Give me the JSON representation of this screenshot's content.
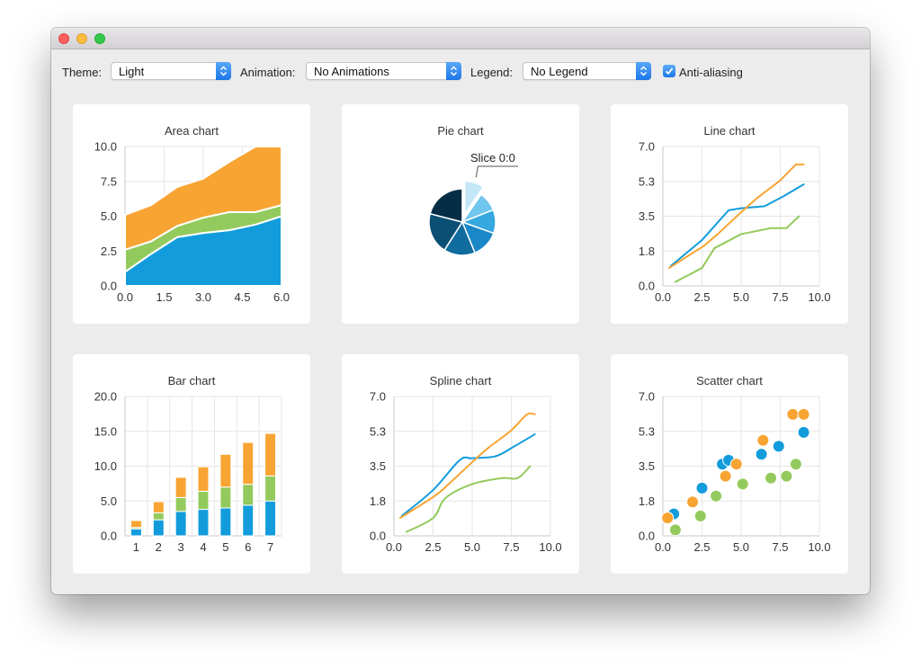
{
  "toolbar": {
    "theme_label": "Theme:",
    "theme_value": "Light",
    "animation_label": "Animation:",
    "animation_value": "No Animations",
    "legend_label": "Legend:",
    "legend_value": "No Legend",
    "antialias_label": "Anti-aliasing",
    "antialias_checked": true
  },
  "colors": {
    "blue": "#129cdc",
    "green": "#93ca5d",
    "orange": "#f8a433",
    "grid": "#e6e6e6",
    "axis": "#c8c8c8"
  },
  "chart_data": [
    {
      "type": "area",
      "title": "Area chart",
      "x": [
        0,
        1,
        2,
        3,
        4,
        5,
        6
      ],
      "series": [
        {
          "values": [
            1.0,
            2.3,
            3.5,
            3.8,
            4.0,
            4.4,
            5.0
          ],
          "color": "#129cdc"
        },
        {
          "values": [
            2.6,
            3.2,
            4.3,
            4.9,
            5.3,
            5.3,
            5.8
          ],
          "color": "#93ca5d"
        },
        {
          "values": [
            5.1,
            5.8,
            7.1,
            7.7,
            8.9,
            10.0,
            10.0
          ],
          "color": "#f8a433"
        }
      ],
      "xlim": [
        0,
        6
      ],
      "ylim": [
        0,
        10
      ],
      "xticks": [
        "0.0",
        "1.5",
        "3.0",
        "4.5",
        "6.0"
      ],
      "yticks": [
        "0.0",
        "2.5",
        "5.0",
        "7.5",
        "10.0"
      ],
      "grid": true
    },
    {
      "type": "pie",
      "title": "Pie chart",
      "annotation": "Slice 0:0",
      "slices": [
        {
          "value": 1.0,
          "color": "#c4e7f8",
          "exploded": true
        },
        {
          "value": 1.0,
          "color": "#6fc6ee"
        },
        {
          "value": 1.2,
          "color": "#36a8e0"
        },
        {
          "value": 1.4,
          "color": "#1a88c7"
        },
        {
          "value": 1.6,
          "color": "#106b9e"
        },
        {
          "value": 2.1,
          "color": "#0b4f74"
        },
        {
          "value": 2.2,
          "color": "#052e46"
        }
      ]
    },
    {
      "type": "line",
      "title": "Line chart",
      "series": [
        {
          "color": "#129cdc",
          "points": [
            [
              0.5,
              1.0
            ],
            [
              2.5,
              2.3
            ],
            [
              4.2,
              3.8
            ],
            [
              5.0,
              3.9
            ],
            [
              6.5,
              4.0
            ],
            [
              7.7,
              4.5
            ],
            [
              9.0,
              5.1
            ]
          ]
        },
        {
          "color": "#f8a433",
          "points": [
            [
              0.4,
              0.9
            ],
            [
              2.6,
              2.0
            ],
            [
              3.5,
              2.6
            ],
            [
              5.0,
              3.7
            ],
            [
              6.0,
              4.4
            ],
            [
              7.5,
              5.3
            ],
            [
              8.5,
              6.1
            ],
            [
              9.0,
              6.1
            ]
          ]
        },
        {
          "color": "#93ca5d",
          "points": [
            [
              0.8,
              0.2
            ],
            [
              2.5,
              0.9
            ],
            [
              3.3,
              1.9
            ],
            [
              5.0,
              2.6
            ],
            [
              6.9,
              2.9
            ],
            [
              7.9,
              2.9
            ],
            [
              8.7,
              3.5
            ]
          ]
        }
      ],
      "xlim": [
        0,
        10
      ],
      "ylim": [
        0,
        7
      ],
      "xticks": [
        "0.0",
        "2.5",
        "5.0",
        "7.5",
        "10.0"
      ],
      "yticks": [
        "0.0",
        "1.8",
        "3.5",
        "5.3",
        "7.0"
      ],
      "grid": true
    },
    {
      "type": "bar",
      "title": "Bar chart",
      "stacked": true,
      "categories": [
        "1",
        "2",
        "3",
        "4",
        "5",
        "6",
        "7"
      ],
      "series": [
        {
          "color": "#129cdc",
          "values": [
            1.0,
            2.3,
            3.5,
            3.8,
            4.0,
            4.4,
            5.0
          ]
        },
        {
          "color": "#93ca5d",
          "values": [
            0.2,
            1.0,
            2.0,
            2.6,
            3.0,
            3.0,
            3.6
          ]
        },
        {
          "color": "#f8a433",
          "values": [
            1.0,
            1.6,
            2.9,
            3.5,
            4.7,
            6.0,
            6.1
          ]
        }
      ],
      "ylim": [
        0,
        20
      ],
      "yticks": [
        "0.0",
        "5.0",
        "10.0",
        "15.0",
        "20.0"
      ],
      "grid": true
    },
    {
      "type": "line",
      "title": "Spline chart",
      "series": [
        {
          "color": "#129cdc",
          "points": [
            [
              0.5,
              1.0
            ],
            [
              2.5,
              2.3
            ],
            [
              4.2,
              3.8
            ],
            [
              5.0,
              3.9
            ],
            [
              6.5,
              4.0
            ],
            [
              7.7,
              4.5
            ],
            [
              9.0,
              5.1
            ]
          ]
        },
        {
          "color": "#f8a433",
          "points": [
            [
              0.4,
              0.9
            ],
            [
              2.6,
              2.0
            ],
            [
              3.5,
              2.6
            ],
            [
              5.0,
              3.7
            ],
            [
              6.0,
              4.4
            ],
            [
              7.5,
              5.3
            ],
            [
              8.5,
              6.1
            ],
            [
              9.0,
              6.1
            ]
          ]
        },
        {
          "color": "#93ca5d",
          "points": [
            [
              0.8,
              0.2
            ],
            [
              2.5,
              0.9
            ],
            [
              3.3,
              1.9
            ],
            [
              5.0,
              2.6
            ],
            [
              6.9,
              2.9
            ],
            [
              7.9,
              2.9
            ],
            [
              8.7,
              3.5
            ]
          ]
        }
      ],
      "xlim": [
        0,
        10
      ],
      "ylim": [
        0,
        7
      ],
      "xticks": [
        "0.0",
        "2.5",
        "5.0",
        "7.5",
        "10.0"
      ],
      "yticks": [
        "0.0",
        "1.8",
        "3.5",
        "5.3",
        "7.0"
      ],
      "grid": true
    },
    {
      "type": "scatter",
      "title": "Scatter chart",
      "series": [
        {
          "color": "#129cdc",
          "points": [
            [
              0.7,
              1.1
            ],
            [
              2.5,
              2.4
            ],
            [
              3.8,
              3.6
            ],
            [
              4.2,
              3.8
            ],
            [
              6.3,
              4.1
            ],
            [
              7.4,
              4.5
            ],
            [
              9.0,
              5.2
            ]
          ]
        },
        {
          "color": "#f8a433",
          "points": [
            [
              0.3,
              0.9
            ],
            [
              1.9,
              1.7
            ],
            [
              4.0,
              3.0
            ],
            [
              4.7,
              3.6
            ],
            [
              6.4,
              4.8
            ],
            [
              8.3,
              6.1
            ],
            [
              9.0,
              6.1
            ]
          ]
        },
        {
          "color": "#93ca5d",
          "points": [
            [
              0.8,
              0.3
            ],
            [
              2.4,
              1.0
            ],
            [
              3.4,
              2.0
            ],
            [
              5.1,
              2.6
            ],
            [
              6.9,
              2.9
            ],
            [
              7.9,
              3.0
            ],
            [
              8.5,
              3.6
            ]
          ]
        }
      ],
      "xlim": [
        0,
        10
      ],
      "ylim": [
        0,
        7
      ],
      "xticks": [
        "0.0",
        "2.5",
        "5.0",
        "7.5",
        "10.0"
      ],
      "yticks": [
        "0.0",
        "1.8",
        "3.5",
        "5.3",
        "7.0"
      ],
      "grid": true
    }
  ]
}
